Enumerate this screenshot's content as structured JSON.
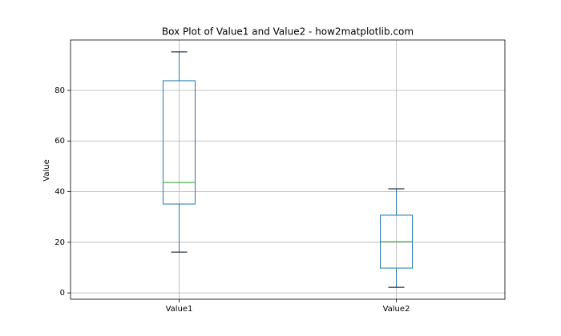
{
  "chart_data": {
    "type": "box",
    "title": "Box Plot of Value1 and Value2 - how2matplotlib.com",
    "ylabel": "Value",
    "categories": [
      "Value1",
      "Value2"
    ],
    "boxes": [
      {
        "whislo": 16.1,
        "q1": 35.1,
        "med": 43.6,
        "q3": 83.8,
        "whishi": 95.2
      },
      {
        "whislo": 2.2,
        "q1": 9.8,
        "med": 20.2,
        "q3": 30.7,
        "whishi": 41.1
      }
    ],
    "box_color": "#1f77b4",
    "median_color": "#2ca02c",
    "cap_color": "#000000",
    "ylim": [
      -2.5,
      99.9
    ],
    "yticks": [
      0,
      20,
      40,
      60,
      80
    ],
    "grid": true
  }
}
